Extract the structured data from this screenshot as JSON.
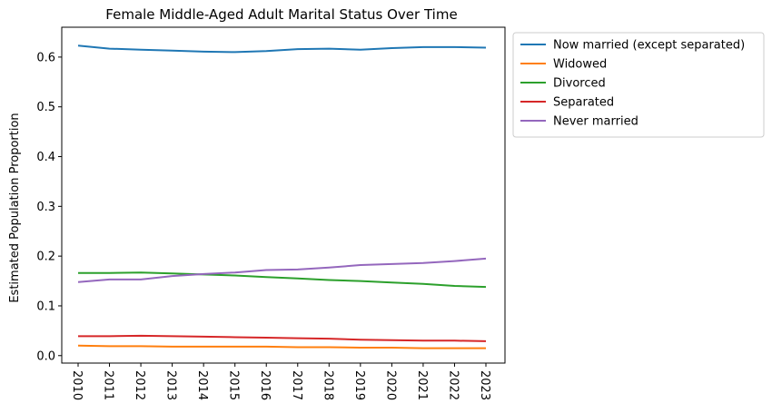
{
  "chart_data": {
    "type": "line",
    "title": "Female Middle-Aged Adult Marital Status Over Time",
    "xlabel": "",
    "ylabel": "Estimated Population Proportion",
    "x": [
      "2010",
      "2011",
      "2012",
      "2013",
      "2014",
      "2015",
      "2016",
      "2017",
      "2018",
      "2019",
      "2020",
      "2021",
      "2022",
      "2023"
    ],
    "ylim": [
      -0.015,
      0.66
    ],
    "yticks": [
      "0.0",
      "0.1",
      "0.2",
      "0.3",
      "0.4",
      "0.5",
      "0.6"
    ],
    "legend_position": "outside upper right",
    "grid": false,
    "series": [
      {
        "name": "Now married (except separated)",
        "color": "#1f77b4",
        "values": [
          0.623,
          0.617,
          0.615,
          0.613,
          0.611,
          0.61,
          0.612,
          0.616,
          0.617,
          0.615,
          0.618,
          0.62,
          0.62,
          0.619
        ]
      },
      {
        "name": "Widowed",
        "color": "#ff7f0e",
        "values": [
          0.02,
          0.019,
          0.019,
          0.018,
          0.018,
          0.018,
          0.018,
          0.017,
          0.017,
          0.016,
          0.016,
          0.015,
          0.015,
          0.015
        ]
      },
      {
        "name": "Divorced",
        "color": "#2ca02c",
        "values": [
          0.166,
          0.166,
          0.167,
          0.165,
          0.163,
          0.161,
          0.158,
          0.155,
          0.152,
          0.15,
          0.147,
          0.144,
          0.14,
          0.138
        ]
      },
      {
        "name": "Separated",
        "color": "#d62728",
        "values": [
          0.039,
          0.039,
          0.04,
          0.039,
          0.038,
          0.037,
          0.036,
          0.035,
          0.034,
          0.032,
          0.031,
          0.03,
          0.03,
          0.029
        ]
      },
      {
        "name": "Never married",
        "color": "#9467bd",
        "values": [
          0.148,
          0.153,
          0.153,
          0.16,
          0.164,
          0.167,
          0.172,
          0.173,
          0.177,
          0.182,
          0.184,
          0.186,
          0.19,
          0.195
        ]
      }
    ]
  }
}
